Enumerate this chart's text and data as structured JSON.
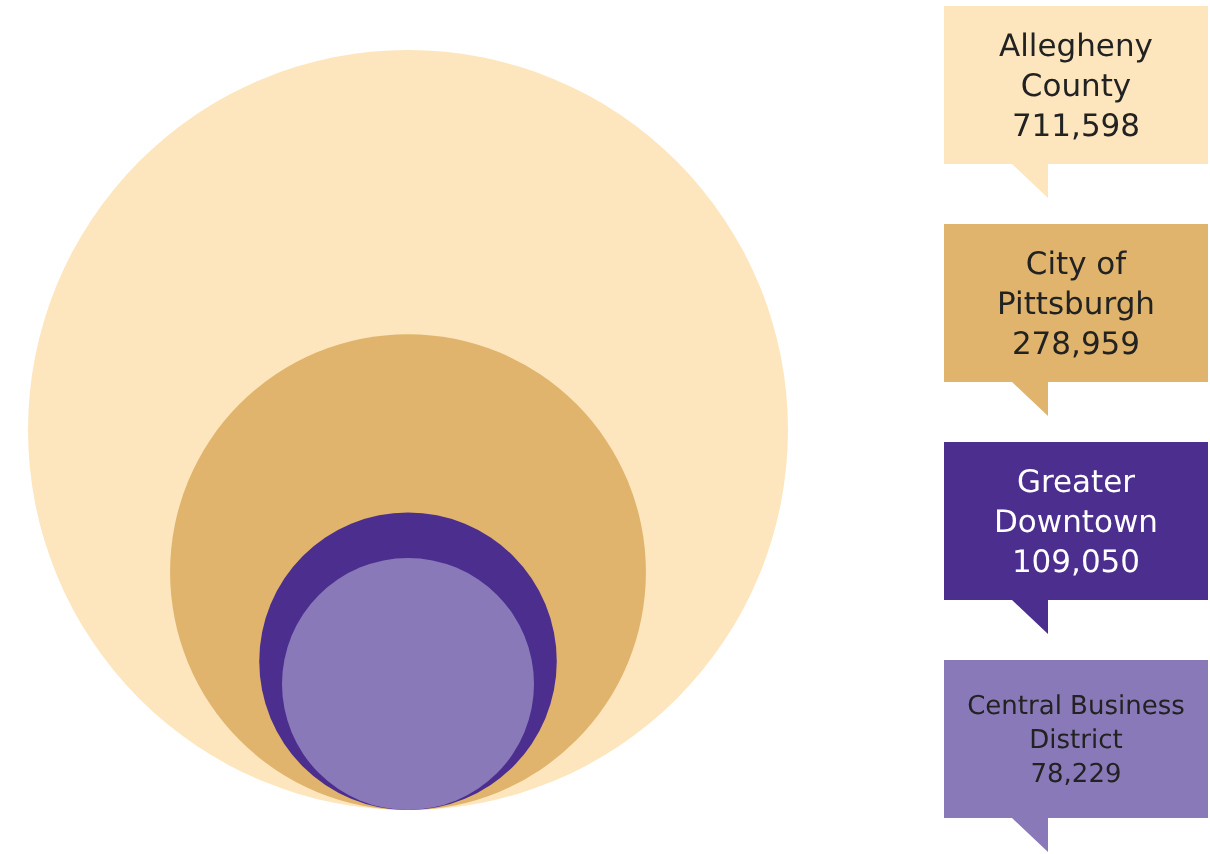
{
  "chart_data": {
    "type": "other",
    "categories": [
      "Allegheny County",
      "City of Pittsburgh",
      "Greater Downtown",
      "Central Business District"
    ],
    "values": [
      711598,
      278959,
      109050,
      78229
    ],
    "value_labels": [
      "711,598",
      "278,959",
      "109,050",
      "78,229"
    ],
    "colors": [
      "#fde6bd",
      "#e0b46c",
      "#4b2e8e",
      "#8a79b9"
    ]
  }
}
